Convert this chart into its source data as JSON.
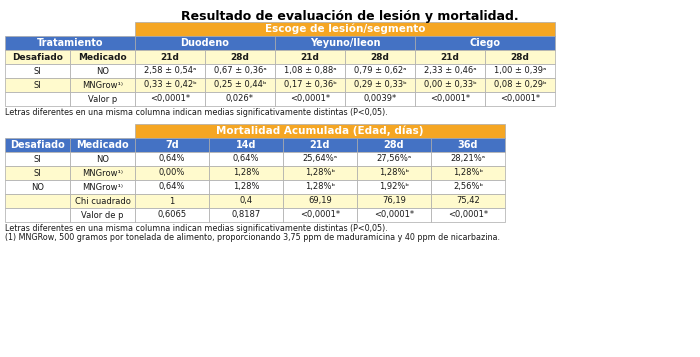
{
  "title": "Resultado de evaluación de lesión y mortalidad.",
  "orange_header1": "Escoge de lesión/segmento",
  "orange_header2": "Mortalidad Acumulada (Edad, días)",
  "orange": "#F5A623",
  "blue": "#4472C4",
  "light_yellow": "#FFFACD",
  "white": "#FFFFFF",
  "text_dark": "#1A1A1A",
  "t1_col_widths": [
    65,
    65,
    70,
    70,
    70,
    70,
    70,
    70
  ],
  "t1_blue_headers": [
    "Tratamiento",
    "Duodeno",
    "Yeyuno/Ileon",
    "Ciego"
  ],
  "t1_sub_headers": [
    "Desafiado",
    "Medicado",
    "21d",
    "28d",
    "21d",
    "28d",
    "21d",
    "28d"
  ],
  "t1_rows": [
    [
      "SI",
      "NO",
      "2,58 ± 0,54ᵃ",
      "0,67 ± 0,36ᵃ",
      "1,08 ± 0,88ᵃ",
      "0,79 ± 0,62ᵃ",
      "2,33 ± 0,46ᵃ",
      "1,00 ± 0,39ᵃ"
    ],
    [
      "SI",
      "MNGrow¹⁾",
      "0,33 ± 0,42ᵇ",
      "0,25 ± 0,44ᵇ",
      "0,17 ± 0,36ᵇ",
      "0,29 ± 0,33ᵇ",
      "0,00 ± 0,33ᵇ",
      "0,08 ± 0,29ᵇ"
    ],
    [
      "",
      "Valor p",
      "<0,0001*",
      "0,026*",
      "<0,0001*",
      "0,0039*",
      "<0,0001*",
      "<0,0001*"
    ]
  ],
  "t1_row_colors": [
    "#FFFFFF",
    "#FFFACD",
    "#FFFFFF"
  ],
  "t2_col_widths": [
    65,
    65,
    74,
    74,
    74,
    74,
    74
  ],
  "t2_blue_headers": [
    "Desafiado",
    "Medicado",
    "7d",
    "14d",
    "21d",
    "28d",
    "36d"
  ],
  "t2_rows": [
    [
      "SI",
      "NO",
      "0,64%",
      "0,64%",
      "25,64%ᵃ",
      "27,56%ᵃ",
      "28,21%ᵃ"
    ],
    [
      "SI",
      "MNGrow¹⁾",
      "0,00%",
      "1,28%",
      "1,28%ᵇ",
      "1,28%ᵇ",
      "1,28%ᵇ"
    ],
    [
      "NO",
      "MNGrow¹⁾",
      "0,64%",
      "1,28%",
      "1,28%ᵇ",
      "1,92%ᵇ",
      "2,56%ᵇ"
    ],
    [
      "",
      "Chi cuadrado",
      "1",
      "0,4",
      "69,19",
      "76,19",
      "75,42"
    ],
    [
      "",
      "Valor de p",
      "0,6065",
      "0,8187",
      "<0,0001*",
      "<0,0001*",
      "<0,0001*"
    ]
  ],
  "t2_row_colors": [
    "#FFFFFF",
    "#FFFACD",
    "#FFFFFF",
    "#FFFACD",
    "#FFFFFF"
  ],
  "footnote1": "Letras diferentes en una misma columna indican medias significativamente distintas (P<0,05).",
  "footnote2": "Letras diferentes en una misma columna indican medias significativamente distintas (P<0,05).",
  "footnote3": "(1) MNGRow, 500 gramos por tonelada de alimento, proporcionando 3,75 ppm de maduramicina y 40 ppm de nicarbazina."
}
